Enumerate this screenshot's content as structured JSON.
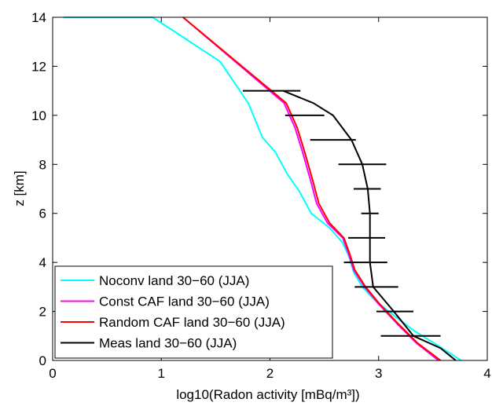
{
  "chart_data": {
    "type": "line",
    "title": "",
    "xlabel": "log10(Radon activity [mBq/m³])",
    "ylabel": "z [km]",
    "xlim": [
      0,
      4
    ],
    "ylim": [
      0,
      14
    ],
    "xticks": [
      0,
      1,
      2,
      3,
      4
    ],
    "yticks": [
      0,
      2,
      4,
      6,
      8,
      10,
      12,
      14
    ],
    "grid": false,
    "legend_position": "bottom-left",
    "series": [
      {
        "name": "Noconv land 30−60 (JJA)",
        "color": "#00ffff",
        "x": [
          3.76,
          3.55,
          3.33,
          3.15,
          2.98,
          2.85,
          2.77,
          2.73,
          2.67,
          2.55,
          2.38,
          2.27,
          2.16,
          2.05,
          1.93,
          1.8,
          1.54,
          0.92,
          0.1
        ],
        "y": [
          0.0,
          0.6,
          1.2,
          1.8,
          2.4,
          3.0,
          3.6,
          4.2,
          4.8,
          5.4,
          6.0,
          6.9,
          7.6,
          8.5,
          9.1,
          10.5,
          12.2,
          14.0,
          14.0
        ]
      },
      {
        "name": "Const CAF land 30−60 (JJA)",
        "color": "#ff00ff",
        "x": [
          3.55,
          3.35,
          3.17,
          3.0,
          2.87,
          2.77,
          2.72,
          2.67,
          2.53,
          2.43,
          2.37,
          2.3,
          2.23,
          2.13,
          1.2
        ],
        "y": [
          0.0,
          0.7,
          1.5,
          2.3,
          3.0,
          3.7,
          4.4,
          5.0,
          5.6,
          6.4,
          7.4,
          8.5,
          9.5,
          10.5,
          14.0
        ]
      },
      {
        "name": "Random CAF land 30−60 (JJA)",
        "color": "#ff0000",
        "x": [
          3.57,
          3.36,
          3.18,
          3.01,
          2.88,
          2.78,
          2.73,
          2.68,
          2.55,
          2.45,
          2.39,
          2.32,
          2.25,
          2.15,
          1.2
        ],
        "y": [
          0.0,
          0.7,
          1.5,
          2.3,
          3.0,
          3.7,
          4.4,
          5.0,
          5.6,
          6.4,
          7.4,
          8.5,
          9.5,
          10.5,
          14.0
        ]
      },
      {
        "name": "Meas land 30−60 (JJA)",
        "color": "#000000",
        "x": [
          3.71,
          3.57,
          3.32,
          3.14,
          2.95,
          2.92,
          2.92,
          2.92,
          2.9,
          2.85,
          2.75,
          2.58,
          2.4,
          2.12
        ],
        "y": [
          0.0,
          0.5,
          1.0,
          2.0,
          3.0,
          4.0,
          5.0,
          6.0,
          7.0,
          8.0,
          9.0,
          10.0,
          10.5,
          11.0
        ],
        "error_bars": [
          {
            "y": 1.0,
            "xmin": 3.02,
            "xmax": 3.57
          },
          {
            "y": 2.0,
            "xmin": 2.98,
            "xmax": 3.32
          },
          {
            "y": 3.0,
            "xmin": 2.78,
            "xmax": 3.18
          },
          {
            "y": 4.0,
            "xmin": 2.68,
            "xmax": 3.08
          },
          {
            "y": 5.0,
            "xmin": 2.72,
            "xmax": 3.06
          },
          {
            "y": 6.0,
            "xmin": 2.84,
            "xmax": 3.0
          },
          {
            "y": 7.0,
            "xmin": 2.77,
            "xmax": 3.02
          },
          {
            "y": 8.0,
            "xmin": 2.63,
            "xmax": 3.07
          },
          {
            "y": 9.0,
            "xmin": 2.37,
            "xmax": 2.79
          },
          {
            "y": 10.0,
            "xmin": 2.14,
            "xmax": 2.5
          },
          {
            "y": 11.0,
            "xmin": 1.75,
            "xmax": 2.28
          }
        ]
      }
    ]
  }
}
